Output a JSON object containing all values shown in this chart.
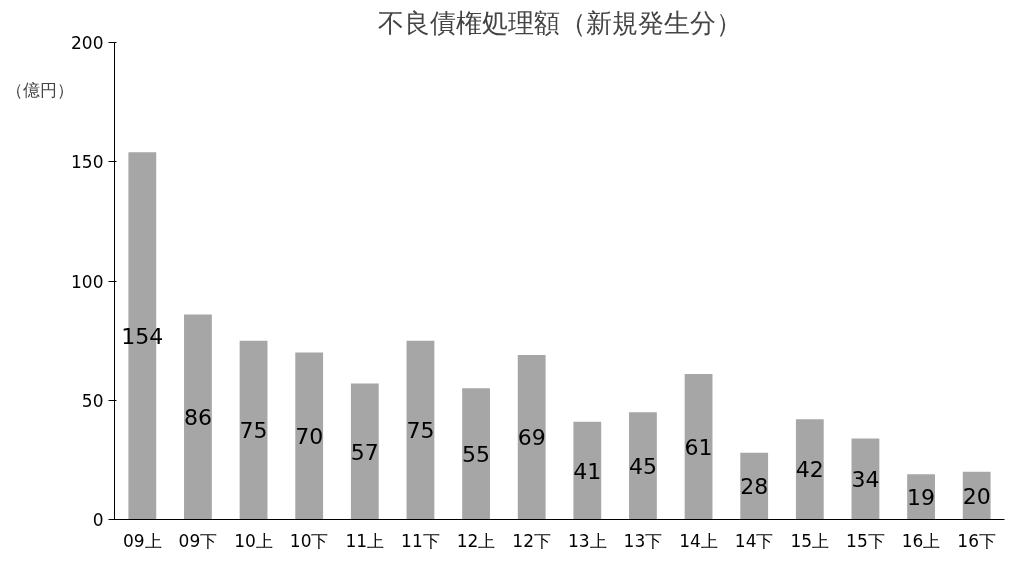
{
  "chart_data": {
    "type": "bar",
    "title": "不良債権処理額（新規発生分）",
    "ylabel": "（億円）",
    "categories": [
      "09上",
      "09下",
      "10上",
      "10下",
      "11上",
      "11下",
      "12上",
      "12下",
      "13上",
      "13下",
      "14上",
      "14下",
      "15上",
      "15下",
      "16上",
      "16下"
    ],
    "values": [
      154,
      86,
      75,
      70,
      57,
      75,
      55,
      69,
      41,
      45,
      61,
      28,
      42,
      34,
      19,
      20
    ],
    "color": "#a6a6a6",
    "ylim": [
      0,
      200
    ],
    "yticks": [
      0,
      50,
      100,
      150,
      200
    ],
    "grid": false,
    "data_labels": true
  }
}
